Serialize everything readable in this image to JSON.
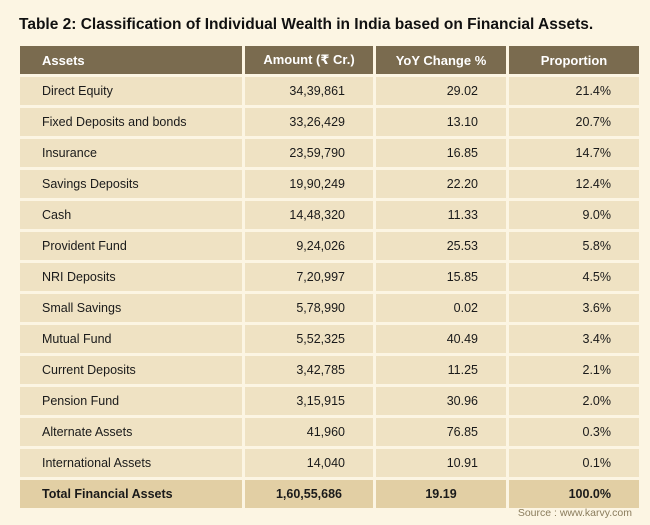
{
  "title": "Table 2: Classification of Individual Wealth in India based on Financial Assets.",
  "columns": {
    "assets": "Assets",
    "amount": "Amount (₹ Cr.)",
    "change": "YoY Change %",
    "proportion": "Proportion"
  },
  "rows": [
    {
      "asset": "Direct Equity",
      "amount": "34,39,861",
      "change": "29.02",
      "proportion": "21.4%"
    },
    {
      "asset": "Fixed Deposits and bonds",
      "amount": "33,26,429",
      "change": "13.10",
      "proportion": "20.7%"
    },
    {
      "asset": "Insurance",
      "amount": "23,59,790",
      "change": "16.85",
      "proportion": "14.7%"
    },
    {
      "asset": "Savings Deposits",
      "amount": "19,90,249",
      "change": "22.20",
      "proportion": "12.4%"
    },
    {
      "asset": "Cash",
      "amount": "14,48,320",
      "change": "11.33",
      "proportion": "9.0%"
    },
    {
      "asset": "Provident Fund",
      "amount": "9,24,026",
      "change": "25.53",
      "proportion": "5.8%"
    },
    {
      "asset": "NRI Deposits",
      "amount": "7,20,997",
      "change": "15.85",
      "proportion": "4.5%"
    },
    {
      "asset": "Small Savings",
      "amount": "5,78,990",
      "change": "0.02",
      "proportion": "3.6%"
    },
    {
      "asset": "Mutual Fund",
      "amount": "5,52,325",
      "change": "40.49",
      "proportion": "3.4%"
    },
    {
      "asset": "Current Deposits",
      "amount": "3,42,785",
      "change": "11.25",
      "proportion": "2.1%"
    },
    {
      "asset": "Pension Fund",
      "amount": "3,15,915",
      "change": "30.96",
      "proportion": "2.0%"
    },
    {
      "asset": "Alternate Assets",
      "amount": "41,960",
      "change": "76.85",
      "proportion": "0.3%"
    },
    {
      "asset": "International Assets",
      "amount": "14,040",
      "change": "10.91",
      "proportion": "0.1%"
    }
  ],
  "total": {
    "asset": "Total Financial Assets",
    "amount": "1,60,55,686",
    "change": "19.19",
    "proportion": "100.0%"
  },
  "source": "Source : www.karvy.com"
}
